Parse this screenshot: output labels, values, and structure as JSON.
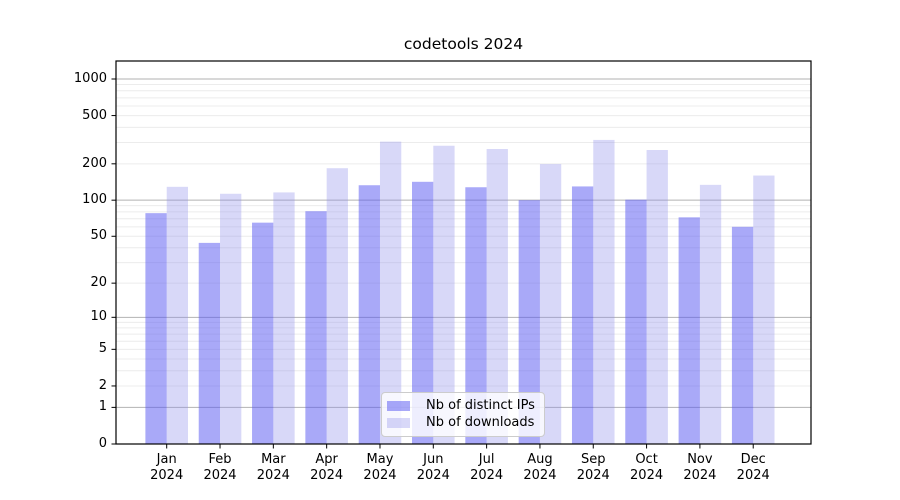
{
  "chart_data": {
    "type": "bar",
    "title": "codetools 2024",
    "categories": [
      "Jan",
      "Feb",
      "Mar",
      "Apr",
      "May",
      "Jun",
      "Jul",
      "Aug",
      "Sep",
      "Oct",
      "Nov",
      "Dec"
    ],
    "year_label": "2024",
    "series": [
      {
        "name": "Nb of distinct IPs",
        "color": "rgba(90,90,242,0.52)",
        "values": [
          78,
          44,
          65,
          81,
          133,
          142,
          128,
          100,
          130,
          101,
          72,
          60
        ]
      },
      {
        "name": "Nb of downloads",
        "color": "rgba(140,140,235,0.34)",
        "values": [
          129,
          113,
          116,
          184,
          305,
          282,
          265,
          199,
          315,
          260,
          134,
          160
        ]
      }
    ],
    "yscale": "log1p",
    "yticks": [
      0,
      1,
      2,
      5,
      10,
      20,
      50,
      100,
      200,
      500,
      1000
    ],
    "ylim": [
      0,
      1400
    ],
    "grid": "on",
    "legend_position": "lower center"
  },
  "colors": {
    "grid_major": "#b2b2b2",
    "grid_minor": "#ececec",
    "axis_border": "#000000",
    "text": "#000000",
    "background": "#ffffff"
  }
}
